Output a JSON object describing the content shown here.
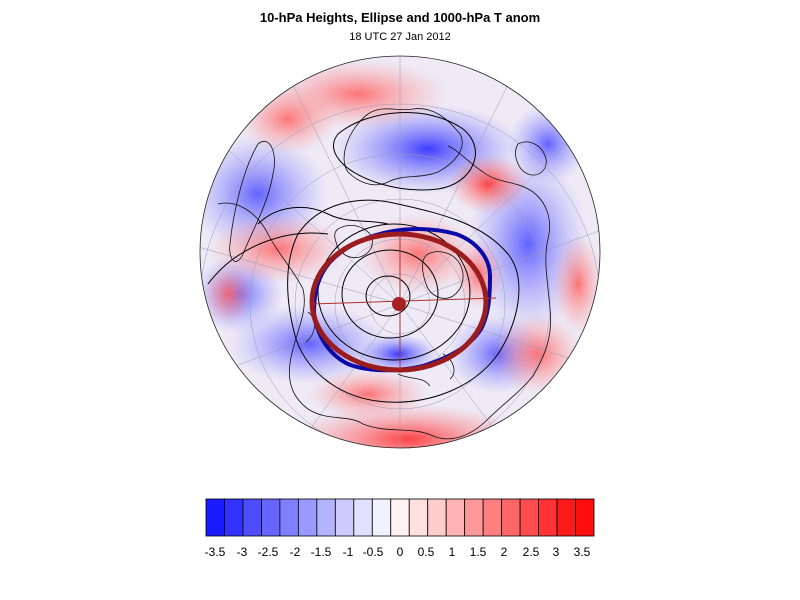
{
  "header": {
    "title": "10-hPa Heights, Ellipse and 1000-hPa T anom",
    "subtitle": "18 UTC 27 Jan 2012"
  },
  "colorbar": {
    "colors": [
      "#1a1aff",
      "#3333ff",
      "#4d4dff",
      "#6666ff",
      "#7f7fff",
      "#9999ff",
      "#b3b3ff",
      "#ccccff",
      "#e0e0ff",
      "#f2f2ff",
      "#fff2f2",
      "#ffe0e0",
      "#ffcccc",
      "#ffb3b3",
      "#ff9999",
      "#ff7f7f",
      "#ff6666",
      "#ff4d4d",
      "#ff3333",
      "#ff1a1a",
      "#ff0d0d"
    ],
    "labels": [
      "-3.5",
      "-3",
      "-2.5",
      "-2",
      "-1.5",
      "-1",
      "-0.5",
      "0",
      "0.5",
      "1",
      "1.5",
      "2",
      "2.5",
      "3",
      "3.5"
    ]
  },
  "map": {
    "ellipse_color": "#9b1c1c",
    "vortex_contour_color": "#0a0aa8",
    "center_dot_color": "#a82020"
  }
}
